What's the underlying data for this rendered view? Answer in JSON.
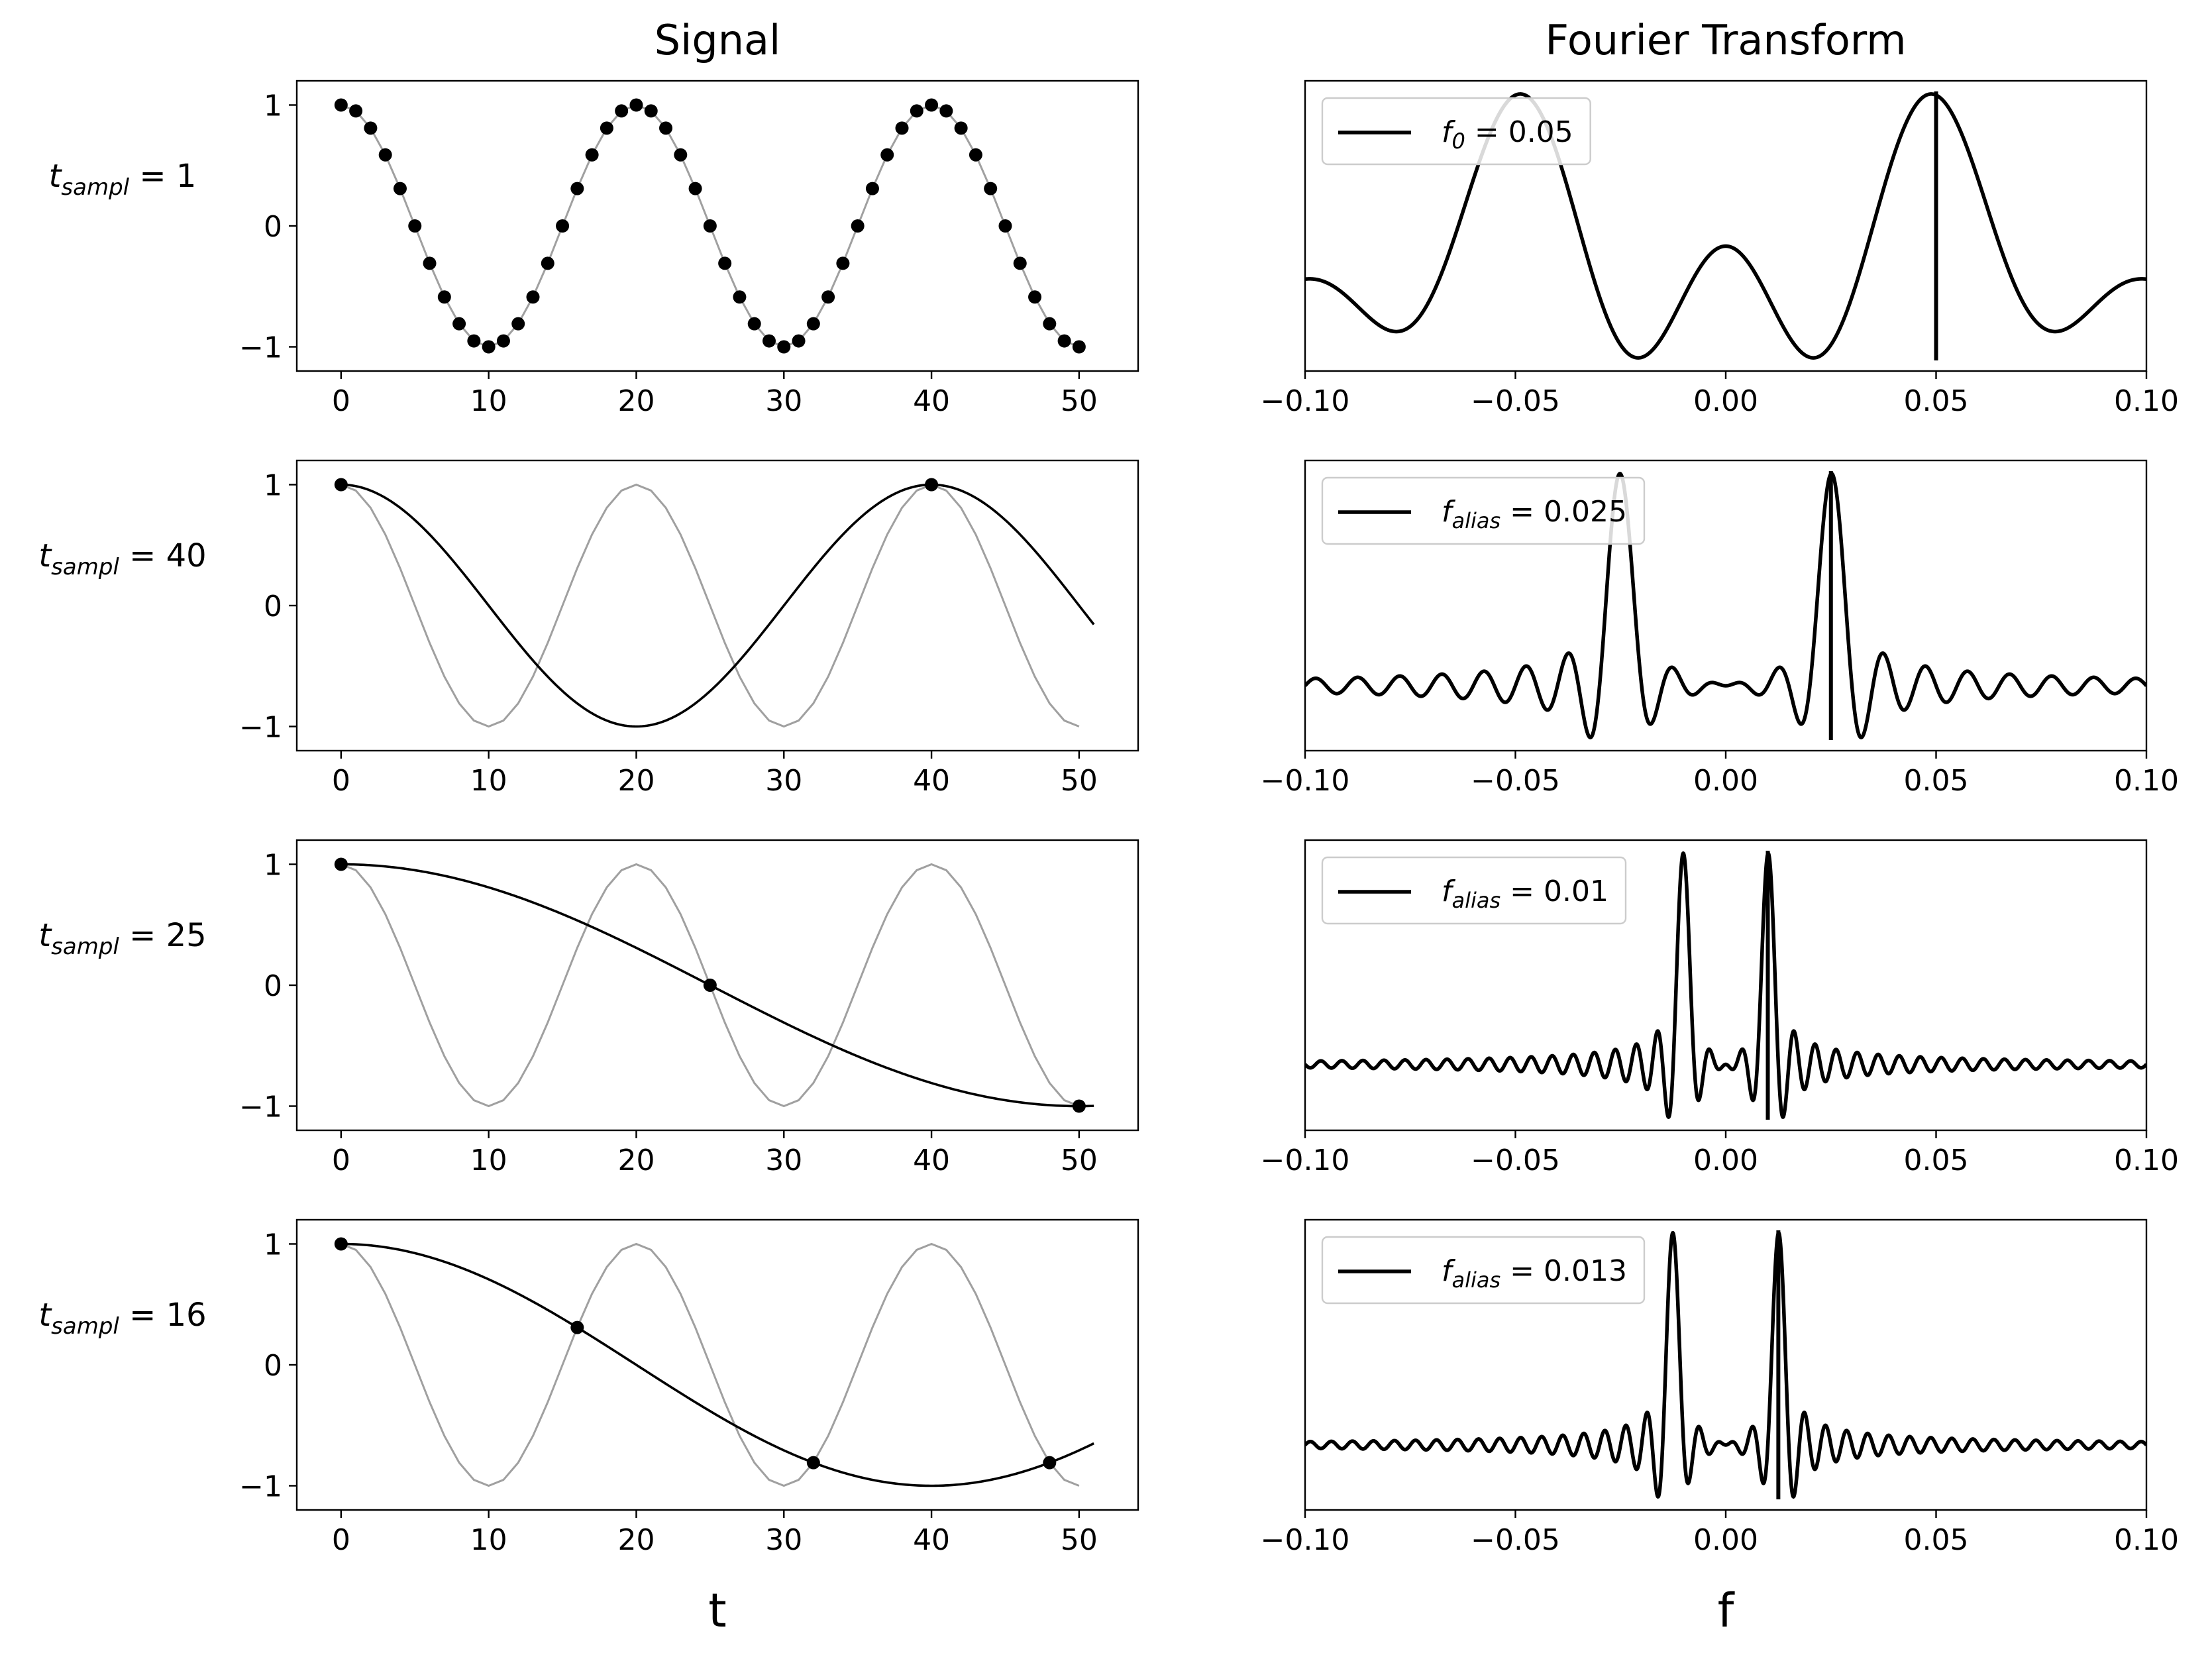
{
  "figure": {
    "col_titles": [
      "Signal",
      "Fourier Transform"
    ],
    "x_labels": [
      "t",
      "f"
    ],
    "row_labels": [
      {
        "main": "t",
        "sub": "sampl",
        "rest": " = 1"
      },
      {
        "main": "t",
        "sub": "sampl",
        "rest": " = 40"
      },
      {
        "main": "t",
        "sub": "sampl",
        "rest": " =  25"
      },
      {
        "main": "t",
        "sub": "sampl",
        "rest": " =  16"
      }
    ]
  },
  "chart_data": [
    {
      "type": "line",
      "panel": "signal",
      "row": 1,
      "xlim": [
        -3,
        54
      ],
      "ylim": [
        -1.2,
        1.2
      ],
      "xticks": [
        0,
        10,
        20,
        30,
        40,
        50
      ],
      "yticks": [
        -1,
        0,
        1
      ],
      "true_signal": {
        "frequency": 0.05,
        "x_start": 0,
        "x_end": 50,
        "color": "#a0a0a0"
      },
      "sample_interval": 1,
      "samples_x": [
        0,
        1,
        2,
        3,
        4,
        5,
        6,
        7,
        8,
        9,
        10,
        11,
        12,
        13,
        14,
        15,
        16,
        17,
        18,
        19,
        20,
        21,
        22,
        23,
        24,
        25,
        26,
        27,
        28,
        29,
        30,
        31,
        32,
        33,
        34,
        35,
        36,
        37,
        38,
        39,
        40,
        41,
        42,
        43,
        44,
        45,
        46,
        47,
        48,
        49,
        50
      ],
      "alias_curve": null
    },
    {
      "type": "line",
      "panel": "fourier",
      "row": 1,
      "xlim": [
        -0.1,
        0.1
      ],
      "xticks": [
        -0.1,
        -0.05,
        0.0,
        0.05,
        0.1
      ],
      "xtick_labels": [
        "−0.10",
        "−0.05",
        "0.00",
        "0.05",
        "0.10"
      ],
      "legend": {
        "main": "f",
        "sub": "0",
        "rest": " = 0.05",
        "position": "upper left"
      },
      "peak_frequency": 0.05,
      "sinc_width": 51,
      "marker_line_x": 0.05
    },
    {
      "type": "line",
      "panel": "signal",
      "row": 2,
      "xlim": [
        -3,
        54
      ],
      "ylim": [
        -1.2,
        1.2
      ],
      "xticks": [
        0,
        10,
        20,
        30,
        40,
        50
      ],
      "yticks": [
        -1,
        0,
        1
      ],
      "true_signal": {
        "frequency": 0.05,
        "x_start": 0,
        "x_end": 50,
        "color": "#a0a0a0"
      },
      "sample_interval": 40,
      "samples_x": [
        0,
        40
      ],
      "alias_curve": {
        "frequency": 0.025,
        "x_start": 0,
        "x_end": 51,
        "color": "#000000"
      }
    },
    {
      "type": "line",
      "panel": "fourier",
      "row": 2,
      "xlim": [
        -0.1,
        0.1
      ],
      "xticks": [
        -0.1,
        -0.05,
        0.0,
        0.05,
        0.1
      ],
      "xtick_labels": [
        "−0.10",
        "−0.05",
        "0.00",
        "0.05",
        "0.10"
      ],
      "legend": {
        "main": "f",
        "sub": "alias",
        "rest": " = 0.025",
        "position": "upper left"
      },
      "peak_frequency": 0.025,
      "sinc_width": 200,
      "marker_line_x": 0.025
    },
    {
      "type": "line",
      "panel": "signal",
      "row": 3,
      "xlim": [
        -3,
        54
      ],
      "ylim": [
        -1.2,
        1.2
      ],
      "xticks": [
        0,
        10,
        20,
        30,
        40,
        50
      ],
      "yticks": [
        -1,
        0,
        1
      ],
      "true_signal": {
        "frequency": 0.05,
        "x_start": 0,
        "x_end": 50,
        "color": "#a0a0a0"
      },
      "sample_interval": 25,
      "samples_x": [
        0,
        25,
        50
      ],
      "alias_curve": {
        "frequency": 0.01,
        "x_start": 0,
        "x_end": 51,
        "color": "#000000"
      }
    },
    {
      "type": "line",
      "panel": "fourier",
      "row": 3,
      "xlim": [
        -0.1,
        0.1
      ],
      "xticks": [
        -0.1,
        -0.05,
        0.0,
        0.05,
        0.1
      ],
      "xtick_labels": [
        "−0.10",
        "−0.05",
        "0.00",
        "0.05",
        "0.10"
      ],
      "legend": {
        "main": "f",
        "sub": "alias",
        "rest": " = 0.01",
        "position": "upper left"
      },
      "peak_frequency": 0.01,
      "sinc_width": 400,
      "marker_line_x": 0.01
    },
    {
      "type": "line",
      "panel": "signal",
      "row": 4,
      "xlim": [
        -3,
        54
      ],
      "ylim": [
        -1.2,
        1.2
      ],
      "xticks": [
        0,
        10,
        20,
        30,
        40,
        50
      ],
      "yticks": [
        -1,
        0,
        1
      ],
      "true_signal": {
        "frequency": 0.05,
        "x_start": 0,
        "x_end": 50,
        "color": "#a0a0a0"
      },
      "sample_interval": 16,
      "samples_x": [
        0,
        16,
        32,
        48
      ],
      "alias_curve": {
        "frequency": 0.0125,
        "x_start": 0,
        "x_end": 51,
        "color": "#000000"
      }
    },
    {
      "type": "line",
      "panel": "fourier",
      "row": 4,
      "xlim": [
        -0.1,
        0.1
      ],
      "xticks": [
        -0.1,
        -0.05,
        0.0,
        0.05,
        0.1
      ],
      "xtick_labels": [
        "−0.10",
        "−0.05",
        "0.00",
        "0.05",
        "0.10"
      ],
      "legend": {
        "main": "f",
        "sub": "alias",
        "rest": " = 0.013",
        "position": "upper left"
      },
      "peak_frequency": 0.0125,
      "sinc_width": 400,
      "marker_line_x": 0.0125
    }
  ]
}
